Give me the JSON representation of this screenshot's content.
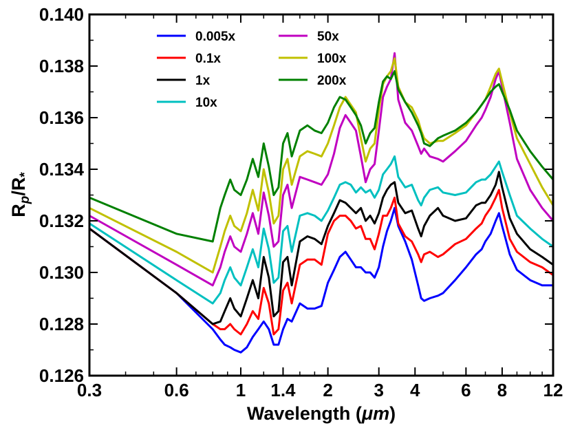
{
  "chart_data": {
    "type": "line",
    "title": "",
    "xlabel": "Wavelength (",
    "xlabel_unit": "μm",
    "xlabel_close": ")",
    "ylabel_main": "R",
    "ylabel_sub": "p",
    "ylabel_slash": "/R",
    "ylabel_star": "*",
    "xscale": "log",
    "xlim": [
      0.3,
      12
    ],
    "ylim": [
      0.126,
      0.14
    ],
    "x_ticks": [
      {
        "value": 0.3,
        "label": "0.3"
      },
      {
        "value": 0.6,
        "label": "0.6"
      },
      {
        "value": 1,
        "label": "1"
      },
      {
        "value": 1.4,
        "label": "1.4"
      },
      {
        "value": 2,
        "label": "2"
      },
      {
        "value": 3,
        "label": "3"
      },
      {
        "value": 4,
        "label": "4"
      },
      {
        "value": 6,
        "label": "6"
      },
      {
        "value": 8,
        "label": "8"
      },
      {
        "value": 12,
        "label": "12"
      }
    ],
    "y_ticks": [
      {
        "value": 0.126,
        "label": "0.126"
      },
      {
        "value": 0.128,
        "label": "0.128"
      },
      {
        "value": 0.13,
        "label": "0.130"
      },
      {
        "value": 0.132,
        "label": "0.132"
      },
      {
        "value": 0.134,
        "label": "0.134"
      },
      {
        "value": 0.136,
        "label": "0.136"
      },
      {
        "value": 0.138,
        "label": "0.138"
      },
      {
        "value": 0.14,
        "label": "0.140"
      }
    ],
    "legend_position": "top-left",
    "x": [
      0.3,
      0.6,
      0.8,
      0.85,
      0.88,
      0.92,
      0.95,
      1.0,
      1.05,
      1.1,
      1.15,
      1.2,
      1.25,
      1.3,
      1.35,
      1.4,
      1.45,
      1.5,
      1.6,
      1.7,
      1.8,
      1.9,
      2.0,
      2.1,
      2.2,
      2.3,
      2.4,
      2.5,
      2.6,
      2.7,
      2.8,
      2.9,
      3.0,
      3.1,
      3.2,
      3.3,
      3.4,
      3.5,
      3.7,
      3.9,
      4.1,
      4.2,
      4.3,
      4.5,
      4.8,
      5.0,
      5.5,
      6.0,
      6.5,
      6.8,
      7.0,
      7.3,
      7.6,
      7.8,
      8.0,
      8.5,
      9.0,
      10.0,
      11.0,
      12.0
    ],
    "series": [
      {
        "name": "0.005x",
        "color": "#0000ff",
        "values": [
          0.1317,
          0.1292,
          0.1278,
          0.1274,
          0.1272,
          0.1271,
          0.127,
          0.1269,
          0.1271,
          0.1275,
          0.1278,
          0.1281,
          0.1278,
          0.1272,
          0.1272,
          0.1278,
          0.1282,
          0.1281,
          0.1288,
          0.1286,
          0.1286,
          0.1287,
          0.1296,
          0.1301,
          0.1306,
          0.1308,
          0.1305,
          0.1302,
          0.1302,
          0.13,
          0.13,
          0.1298,
          0.1302,
          0.131,
          0.1316,
          0.132,
          0.1325,
          0.1318,
          0.1312,
          0.1305,
          0.1295,
          0.129,
          0.1289,
          0.129,
          0.1291,
          0.1292,
          0.1297,
          0.1302,
          0.1307,
          0.1309,
          0.1312,
          0.1315,
          0.132,
          0.1323,
          0.1318,
          0.1307,
          0.1301,
          0.1297,
          0.1295,
          0.1295
        ]
      },
      {
        "name": "0.1x",
        "color": "#ff0000",
        "values": [
          0.1317,
          0.1292,
          0.128,
          0.1278,
          0.1278,
          0.128,
          0.1278,
          0.1276,
          0.128,
          0.1285,
          0.1282,
          0.1294,
          0.1288,
          0.1276,
          0.1278,
          0.1293,
          0.1296,
          0.1288,
          0.1303,
          0.1305,
          0.1305,
          0.1303,
          0.1315,
          0.132,
          0.1322,
          0.1322,
          0.132,
          0.1317,
          0.1318,
          0.1313,
          0.1313,
          0.1309,
          0.1315,
          0.1322,
          0.1322,
          0.1325,
          0.1329,
          0.1319,
          0.1314,
          0.1312,
          0.1307,
          0.1304,
          0.1307,
          0.1308,
          0.1306,
          0.1307,
          0.1311,
          0.1313,
          0.1317,
          0.1319,
          0.1322,
          0.1325,
          0.1329,
          0.1332,
          0.1325,
          0.1313,
          0.1308,
          0.1304,
          0.1302,
          0.1299
        ]
      },
      {
        "name": "1x",
        "color": "#000000",
        "values": [
          0.1317,
          0.1292,
          0.128,
          0.1281,
          0.1285,
          0.129,
          0.1286,
          0.1283,
          0.129,
          0.1297,
          0.129,
          0.1306,
          0.1298,
          0.1283,
          0.1285,
          0.1304,
          0.1306,
          0.1295,
          0.1312,
          0.1314,
          0.1313,
          0.1311,
          0.1318,
          0.1323,
          0.1328,
          0.1327,
          0.1325,
          0.1323,
          0.1325,
          0.132,
          0.1322,
          0.1319,
          0.1323,
          0.1329,
          0.1332,
          0.1334,
          0.1335,
          0.1327,
          0.1323,
          0.1324,
          0.1317,
          0.1314,
          0.1318,
          0.1322,
          0.1325,
          0.1322,
          0.132,
          0.1321,
          0.1326,
          0.1327,
          0.1327,
          0.133,
          0.1334,
          0.1339,
          0.1333,
          0.1321,
          0.1315,
          0.1309,
          0.1306,
          0.1303
        ]
      },
      {
        "name": "10x",
        "color": "#00c0c0",
        "values": [
          0.1319,
          0.1297,
          0.1288,
          0.1292,
          0.1297,
          0.1302,
          0.1298,
          0.1295,
          0.1302,
          0.1309,
          0.1302,
          0.1317,
          0.1309,
          0.1296,
          0.1298,
          0.1316,
          0.1318,
          0.1308,
          0.1322,
          0.1323,
          0.1322,
          0.132,
          0.1324,
          0.1329,
          0.1334,
          0.1335,
          0.1334,
          0.1331,
          0.1333,
          0.1331,
          0.1332,
          0.1329,
          0.1332,
          0.1338,
          0.134,
          0.1342,
          0.1345,
          0.1337,
          0.1333,
          0.1334,
          0.1328,
          0.1326,
          0.1329,
          0.1332,
          0.1333,
          0.1331,
          0.133,
          0.1331,
          0.1335,
          0.1336,
          0.1336,
          0.1338,
          0.1341,
          0.1343,
          0.1339,
          0.133,
          0.1322,
          0.1317,
          0.1313,
          0.131
        ]
      },
      {
        "name": "50x",
        "color": "#c000c0",
        "values": [
          0.1322,
          0.1303,
          0.1295,
          0.1302,
          0.1308,
          0.1314,
          0.131,
          0.1308,
          0.1315,
          0.1323,
          0.1315,
          0.1331,
          0.1322,
          0.131,
          0.1312,
          0.133,
          0.1334,
          0.1325,
          0.1337,
          0.1336,
          0.1335,
          0.1334,
          0.1338,
          0.1346,
          0.1356,
          0.1361,
          0.1358,
          0.1355,
          0.1345,
          0.1335,
          0.134,
          0.1342,
          0.1355,
          0.1368,
          0.1372,
          0.1375,
          0.1385,
          0.1367,
          0.1358,
          0.1355,
          0.1349,
          0.1346,
          0.1348,
          0.1345,
          0.1344,
          0.1343,
          0.1347,
          0.1351,
          0.1357,
          0.136,
          0.1363,
          0.1368,
          0.1375,
          0.1378,
          0.1372,
          0.1358,
          0.1344,
          0.1332,
          0.1325,
          0.132
        ]
      },
      {
        "name": "100x",
        "color": "#c0c000",
        "values": [
          0.1325,
          0.1308,
          0.13,
          0.131,
          0.1316,
          0.1322,
          0.1318,
          0.1316,
          0.1323,
          0.1332,
          0.1324,
          0.134,
          0.1331,
          0.1319,
          0.1322,
          0.134,
          0.1344,
          0.1334,
          0.1345,
          0.1347,
          0.1346,
          0.1345,
          0.135,
          0.1357,
          0.1364,
          0.1368,
          0.1365,
          0.1362,
          0.1352,
          0.1343,
          0.1348,
          0.135,
          0.1363,
          0.1373,
          0.1376,
          0.1378,
          0.1383,
          0.1372,
          0.1366,
          0.1364,
          0.1359,
          0.1355,
          0.1352,
          0.135,
          0.1351,
          0.1351,
          0.1354,
          0.1357,
          0.1362,
          0.1365,
          0.1367,
          0.1372,
          0.1377,
          0.1379,
          0.1374,
          0.1362,
          0.1352,
          0.1342,
          0.1333,
          0.1326
        ]
      },
      {
        "name": "200x",
        "color": "#008000",
        "values": [
          0.1329,
          0.1315,
          0.1312,
          0.1325,
          0.133,
          0.1336,
          0.1332,
          0.133,
          0.1336,
          0.1344,
          0.1337,
          0.135,
          0.1341,
          0.133,
          0.1333,
          0.135,
          0.1354,
          0.1345,
          0.1355,
          0.1357,
          0.1355,
          0.1354,
          0.1358,
          0.1364,
          0.1368,
          0.1367,
          0.1364,
          0.1361,
          0.1357,
          0.135,
          0.1354,
          0.1356,
          0.1366,
          0.1374,
          0.1376,
          0.1375,
          0.1378,
          0.1371,
          0.1366,
          0.1362,
          0.1357,
          0.1354,
          0.135,
          0.1349,
          0.1352,
          0.1353,
          0.1355,
          0.1358,
          0.1362,
          0.1365,
          0.1367,
          0.137,
          0.1372,
          0.1373,
          0.137,
          0.1363,
          0.1355,
          0.1347,
          0.1341,
          0.1336
        ]
      }
    ]
  }
}
